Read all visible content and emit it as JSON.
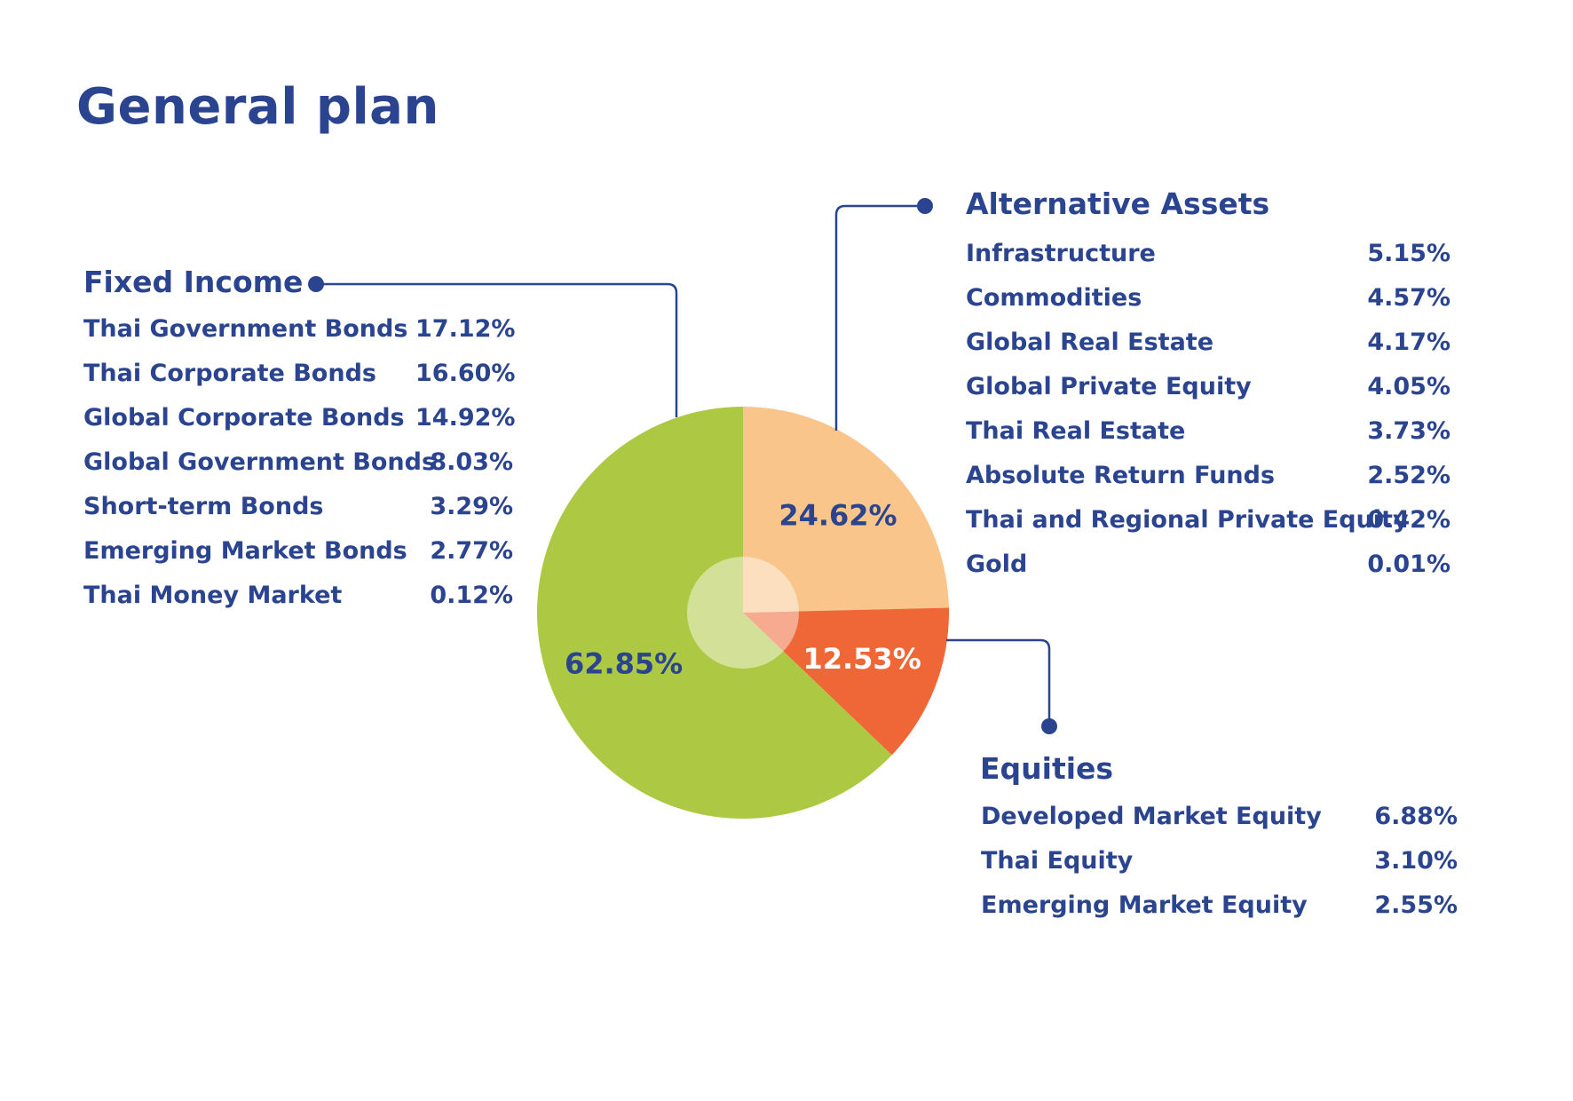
{
  "title": "General plan",
  "colors": {
    "text": "#2b4490",
    "fixed_income": "#adc943",
    "alternative_assets": "#f9c58a",
    "equities": "#ef6637",
    "connector": "#2b4490"
  },
  "chart_data": {
    "type": "pie",
    "title": "General plan",
    "slices": [
      {
        "name": "Alternative Assets",
        "value": 24.62,
        "label": "24.62%",
        "color": "#f9c58a",
        "label_color": "#2b4490"
      },
      {
        "name": "Equities",
        "value": 12.53,
        "label": "12.53%",
        "color": "#ef6637",
        "label_color": "#ffffff"
      },
      {
        "name": "Fixed Income",
        "value": 62.85,
        "label": "62.85%",
        "color": "#adc943",
        "label_color": "#2b4490"
      }
    ]
  },
  "fixed_income": {
    "title": "Fixed Income",
    "items": [
      {
        "label": "Thai Government Bonds",
        "value": "17.12%"
      },
      {
        "label": "Thai Corporate Bonds",
        "value": "16.60%"
      },
      {
        "label": "Global Corporate Bonds",
        "value": "14.92%"
      },
      {
        "label": "Global Government Bonds",
        "value": "8.03%"
      },
      {
        "label": "Short-term Bonds",
        "value": "3.29%"
      },
      {
        "label": "Emerging Market Bonds",
        "value": "2.77%"
      },
      {
        "label": "Thai Money Market",
        "value": "0.12%"
      }
    ]
  },
  "alternative_assets": {
    "title": "Alternative Assets",
    "items": [
      {
        "label": "Infrastructure",
        "value": "5.15%"
      },
      {
        "label": "Commodities",
        "value": "4.57%"
      },
      {
        "label": "Global Real Estate",
        "value": "4.17%"
      },
      {
        "label": "Global Private Equity",
        "value": "4.05%"
      },
      {
        "label": "Thai Real Estate",
        "value": "3.73%"
      },
      {
        "label": "Absolute Return Funds",
        "value": "2.52%"
      },
      {
        "label": "Thai and Regional Private Equity",
        "value": "0.42%"
      },
      {
        "label": "Gold",
        "value": "0.01%"
      }
    ]
  },
  "equities": {
    "title": "Equities",
    "items": [
      {
        "label": "Developed Market Equity",
        "value": "6.88%"
      },
      {
        "label": "Thai Equity",
        "value": "3.10%"
      },
      {
        "label": "Emerging Market Equity",
        "value": "2.55%"
      }
    ]
  }
}
